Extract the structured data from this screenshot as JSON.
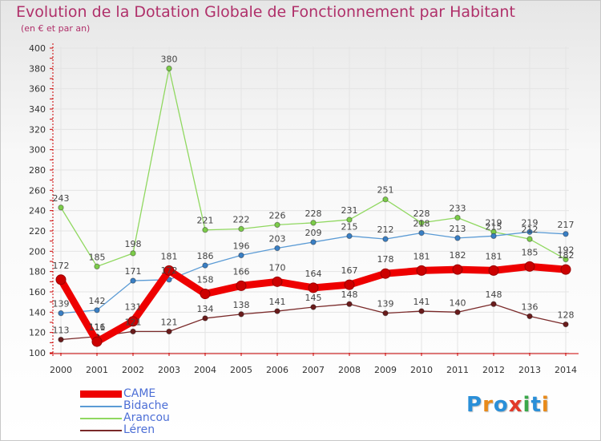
{
  "title": "Evolution de la Dotation Globale de Fonctionnement par Habitant",
  "subtitle": "(en € et par an)",
  "logo_text": "Proxiti",
  "colors": {
    "title": "#b0306a",
    "axis": "#cc0000",
    "legend_text": "#4d6fd6"
  },
  "chart_data": {
    "type": "line",
    "title": "Evolution de la Dotation Globale de Fonctionnement par Habitant",
    "subtitle": "(en € et par an)",
    "xlabel": "",
    "ylabel": "",
    "ylim": [
      100,
      400
    ],
    "yticks": [
      100,
      120,
      140,
      160,
      180,
      200,
      220,
      240,
      260,
      280,
      300,
      320,
      340,
      360,
      380,
      400
    ],
    "categories": [
      "2000",
      "2001",
      "2002",
      "2003",
      "2004",
      "2005",
      "2006",
      "2007",
      "2008",
      "2009",
      "2010",
      "2011",
      "2012",
      "2013",
      "2014"
    ],
    "legend_position": "bottom-left",
    "series": [
      {
        "name": "CAME",
        "color": "#ee0000",
        "marker": "#cc0000",
        "values": [
          172,
          111,
          131,
          181,
          158,
          166,
          170,
          164,
          167,
          178,
          181,
          182,
          181,
          185,
          182
        ]
      },
      {
        "name": "Bidache",
        "color": "#5b9bd5",
        "marker": "#3a7fc4",
        "values": [
          139,
          142,
          171,
          172,
          186,
          196,
          203,
          209,
          215,
          212,
          218,
          213,
          215,
          219,
          217
        ]
      },
      {
        "name": "Arancou",
        "color": "#90d860",
        "marker": "#7ccc4a",
        "values": [
          243,
          185,
          198,
          380,
          221,
          222,
          226,
          228,
          231,
          251,
          228,
          233,
          219,
          212,
          192
        ]
      },
      {
        "name": "Léren",
        "color": "#7a2a2a",
        "marker": "#6a1c1c",
        "values": [
          113,
          116,
          121,
          121,
          134,
          138,
          141,
          145,
          148,
          139,
          141,
          140,
          148,
          136,
          128
        ]
      }
    ],
    "point_labels": [
      [
        "172",
        "111",
        "131",
        "181",
        "158",
        "166",
        "170",
        "164",
        "167",
        "178",
        "181",
        "182",
        "181",
        "185",
        "182"
      ],
      [
        "139",
        "142",
        "171",
        "172",
        "186",
        "196",
        "203",
        "209",
        "215",
        "212",
        "218",
        "213",
        "215",
        "219",
        "217"
      ],
      [
        "243",
        "185",
        "198",
        "380",
        "221",
        "222",
        "226",
        "228",
        "231",
        "251",
        "228",
        "233",
        "219",
        "212",
        "192"
      ],
      [
        "113",
        "116",
        "121",
        "121",
        "134",
        "138",
        "141",
        "145",
        "148",
        "139",
        "141",
        "140",
        "148",
        "136",
        "128"
      ]
    ]
  }
}
